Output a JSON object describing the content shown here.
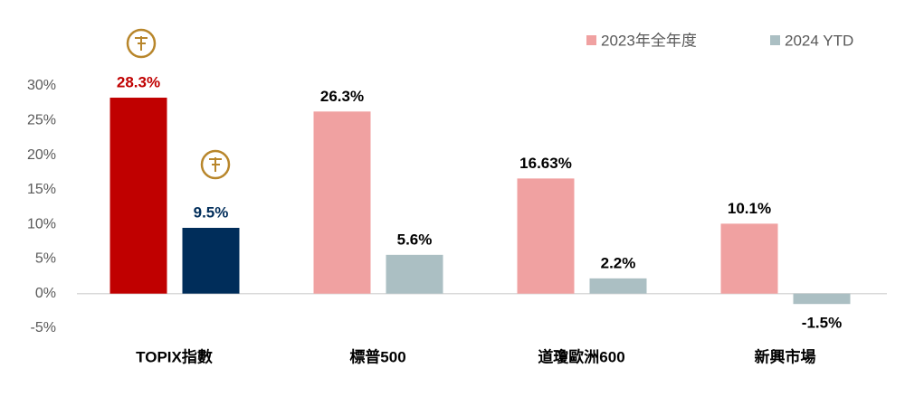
{
  "chart_data": {
    "type": "bar",
    "categories": [
      "TOPIX指數",
      "標普500",
      "道瓊歐洲600",
      "新興市場"
    ],
    "series": [
      {
        "name": "2023年全年度",
        "color": "#f0a1a1",
        "colors": [
          "#c00000",
          "#f0a1a1",
          "#f0a1a1",
          "#f0a1a1"
        ],
        "label_colors": [
          "#c00000",
          "#000000",
          "#000000",
          "#000000"
        ],
        "values": [
          28.3,
          26.3,
          16.63,
          10.1
        ],
        "value_labels": [
          "28.3%",
          "26.3%",
          "16.63%",
          "10.1%"
        ]
      },
      {
        "name": "2024 YTD",
        "color": "#abbfc3",
        "colors": [
          "#002d5a",
          "#abbfc3",
          "#abbfc3",
          "#abbfc3"
        ],
        "label_colors": [
          "#002d5a",
          "#000000",
          "#000000",
          "#000000"
        ],
        "values": [
          9.5,
          5.6,
          2.2,
          -1.5
        ],
        "value_labels": [
          "9.5%",
          "5.6%",
          "2.2%",
          "-1.5%"
        ]
      }
    ],
    "ylim": [
      -5,
      30
    ],
    "yticks": [
      {
        "value": 30,
        "label": "30%"
      },
      {
        "value": 25,
        "label": "25%"
      },
      {
        "value": 20,
        "label": "20%"
      },
      {
        "value": 15,
        "label": "15%"
      },
      {
        "value": 10,
        "label": "10%"
      },
      {
        "value": 5,
        "label": "5%"
      },
      {
        "value": 0,
        "label": "0%"
      },
      {
        "value": -5,
        "label": "-5%"
      }
    ],
    "legend": "top-right"
  }
}
